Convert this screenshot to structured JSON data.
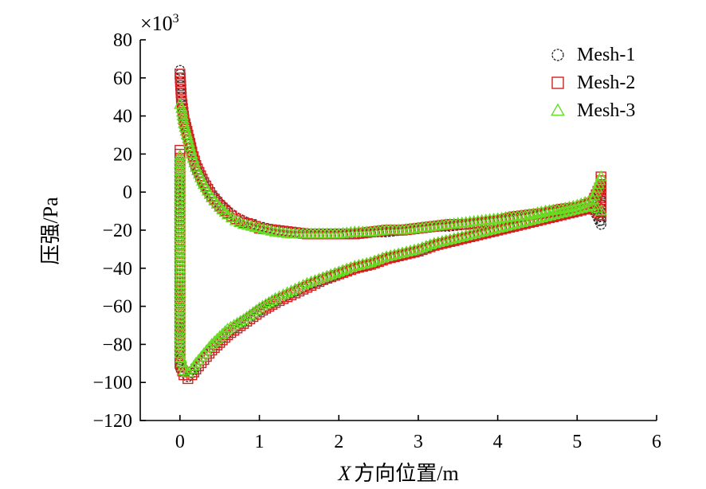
{
  "chart_data": {
    "type": "scatter",
    "title": "",
    "xlabel_italic": "X",
    "xlabel": "方向位置/m",
    "ylabel": "压强/Pa",
    "y_multiplier": "×10",
    "y_multiplier_exp": "3",
    "xlim": [
      -0.5,
      6
    ],
    "ylim": [
      -120,
      80
    ],
    "x_ticks": [
      "0",
      "1",
      "2",
      "3",
      "4",
      "5",
      "6"
    ],
    "y_ticks": [
      "80",
      "60",
      "40",
      "20",
      "0",
      "−20",
      "−40",
      "−60",
      "−80",
      "−100",
      "−120"
    ],
    "grid": false,
    "legend_position": "top-right",
    "series": [
      {
        "name": "Mesh-1",
        "marker": "circle",
        "color": "#222222",
        "upper": [
          [
            0,
            64
          ],
          [
            0.02,
            50
          ],
          [
            0.05,
            40
          ],
          [
            0.1,
            32
          ],
          [
            0.15,
            22
          ],
          [
            0.2,
            15
          ],
          [
            0.3,
            6
          ],
          [
            0.4,
            -1
          ],
          [
            0.5,
            -6
          ],
          [
            0.6,
            -10
          ],
          [
            0.7,
            -13
          ],
          [
            0.8,
            -15
          ],
          [
            0.9,
            -17
          ],
          [
            1.0,
            -18
          ],
          [
            1.2,
            -20
          ],
          [
            1.4,
            -21
          ],
          [
            1.6,
            -22
          ],
          [
            1.8,
            -22
          ],
          [
            2.0,
            -22
          ],
          [
            2.2,
            -22
          ],
          [
            2.4,
            -21
          ],
          [
            2.6,
            -21
          ],
          [
            2.8,
            -20
          ],
          [
            3.0,
            -19
          ],
          [
            3.2,
            -18
          ],
          [
            3.4,
            -18
          ],
          [
            3.6,
            -17
          ],
          [
            3.8,
            -16
          ],
          [
            4.0,
            -15
          ],
          [
            4.2,
            -14
          ],
          [
            4.4,
            -12
          ],
          [
            4.6,
            -11
          ],
          [
            4.8,
            -10
          ],
          [
            5.0,
            -8
          ],
          [
            5.2,
            -6
          ],
          [
            5.3,
            2
          ]
        ],
        "lower": [
          [
            0,
            6
          ],
          [
            0,
            -13
          ],
          [
            0,
            -45
          ],
          [
            0,
            -65
          ],
          [
            0,
            -80
          ],
          [
            0,
            -92
          ],
          [
            0.05,
            -95
          ],
          [
            0.1,
            -97
          ],
          [
            0.15,
            -95
          ],
          [
            0.2,
            -92
          ],
          [
            0.3,
            -87
          ],
          [
            0.4,
            -82
          ],
          [
            0.5,
            -78
          ],
          [
            0.6,
            -74
          ],
          [
            0.8,
            -68
          ],
          [
            1.0,
            -62
          ],
          [
            1.2,
            -57
          ],
          [
            1.4,
            -53
          ],
          [
            1.6,
            -49
          ],
          [
            1.8,
            -46
          ],
          [
            2.0,
            -43
          ],
          [
            2.2,
            -40
          ],
          [
            2.4,
            -38
          ],
          [
            2.6,
            -35
          ],
          [
            2.8,
            -33
          ],
          [
            3.0,
            -31
          ],
          [
            3.2,
            -28
          ],
          [
            3.4,
            -26
          ],
          [
            3.6,
            -24
          ],
          [
            3.8,
            -22
          ],
          [
            4.0,
            -20
          ],
          [
            4.2,
            -18
          ],
          [
            4.4,
            -16
          ],
          [
            4.6,
            -14
          ],
          [
            4.8,
            -12
          ],
          [
            5.0,
            -10
          ],
          [
            5.2,
            -8
          ],
          [
            5.3,
            -17
          ],
          [
            5.3,
            6
          ]
        ]
      },
      {
        "name": "Mesh-2",
        "marker": "square",
        "color": "#d42020",
        "upper": [
          [
            0,
            62
          ],
          [
            0.02,
            48
          ],
          [
            0.05,
            38
          ],
          [
            0.1,
            30
          ],
          [
            0.15,
            21
          ],
          [
            0.2,
            14
          ],
          [
            0.3,
            5
          ],
          [
            0.4,
            -2
          ],
          [
            0.5,
            -7
          ],
          [
            0.6,
            -11
          ],
          [
            0.7,
            -14
          ],
          [
            0.8,
            -16
          ],
          [
            0.9,
            -17
          ],
          [
            1.0,
            -19
          ],
          [
            1.2,
            -20
          ],
          [
            1.4,
            -21
          ],
          [
            1.6,
            -22
          ],
          [
            1.8,
            -22
          ],
          [
            2.0,
            -22
          ],
          [
            2.2,
            -22
          ],
          [
            2.4,
            -21
          ],
          [
            2.6,
            -20
          ],
          [
            2.8,
            -20
          ],
          [
            3.0,
            -19
          ],
          [
            3.2,
            -18
          ],
          [
            3.4,
            -17
          ],
          [
            3.6,
            -17
          ],
          [
            3.8,
            -16
          ],
          [
            4.0,
            -15
          ],
          [
            4.2,
            -13
          ],
          [
            4.4,
            -12
          ],
          [
            4.6,
            -11
          ],
          [
            4.8,
            -9
          ],
          [
            5.0,
            -8
          ],
          [
            5.2,
            -5
          ],
          [
            5.3,
            4
          ]
        ],
        "lower": [
          [
            0,
            22
          ],
          [
            0,
            -30
          ],
          [
            0,
            -58
          ],
          [
            0,
            -78
          ],
          [
            0,
            -90
          ],
          [
            0.05,
            -96
          ],
          [
            0.1,
            -98
          ],
          [
            0.15,
            -96
          ],
          [
            0.2,
            -93
          ],
          [
            0.3,
            -88
          ],
          [
            0.4,
            -83
          ],
          [
            0.5,
            -79
          ],
          [
            0.6,
            -75
          ],
          [
            0.8,
            -69
          ],
          [
            1.0,
            -63
          ],
          [
            1.2,
            -58
          ],
          [
            1.4,
            -54
          ],
          [
            1.6,
            -50
          ],
          [
            1.8,
            -46
          ],
          [
            2.0,
            -43
          ],
          [
            2.2,
            -40
          ],
          [
            2.4,
            -38
          ],
          [
            2.6,
            -35
          ],
          [
            2.8,
            -33
          ],
          [
            3.0,
            -31
          ],
          [
            3.2,
            -28
          ],
          [
            3.4,
            -26
          ],
          [
            3.6,
            -24
          ],
          [
            3.8,
            -22
          ],
          [
            4.0,
            -20
          ],
          [
            4.2,
            -18
          ],
          [
            4.4,
            -16
          ],
          [
            4.6,
            -14
          ],
          [
            4.8,
            -12
          ],
          [
            5.0,
            -10
          ],
          [
            5.2,
            -8
          ],
          [
            5.3,
            -12
          ],
          [
            5.3,
            8
          ]
        ]
      },
      {
        "name": "Mesh-3",
        "marker": "triangle",
        "color": "#66dd22",
        "upper": [
          [
            0,
            46
          ],
          [
            0.02,
            44
          ],
          [
            0.05,
            36
          ],
          [
            0.1,
            28
          ],
          [
            0.15,
            20
          ],
          [
            0.2,
            13
          ],
          [
            0.3,
            4
          ],
          [
            0.4,
            -3
          ],
          [
            0.5,
            -8
          ],
          [
            0.6,
            -12
          ],
          [
            0.7,
            -15
          ],
          [
            0.8,
            -17
          ],
          [
            0.9,
            -18
          ],
          [
            1.0,
            -19
          ],
          [
            1.2,
            -21
          ],
          [
            1.4,
            -22
          ],
          [
            1.6,
            -22
          ],
          [
            1.8,
            -22
          ],
          [
            2.0,
            -22
          ],
          [
            2.2,
            -21
          ],
          [
            2.4,
            -21
          ],
          [
            2.6,
            -20
          ],
          [
            2.8,
            -20
          ],
          [
            3.0,
            -19
          ],
          [
            3.2,
            -18
          ],
          [
            3.4,
            -17
          ],
          [
            3.6,
            -16
          ],
          [
            3.8,
            -15
          ],
          [
            4.0,
            -14
          ],
          [
            4.2,
            -13
          ],
          [
            4.4,
            -12
          ],
          [
            4.6,
            -10
          ],
          [
            4.8,
            -9
          ],
          [
            5.0,
            -7
          ],
          [
            5.2,
            -4
          ],
          [
            5.3,
            8
          ]
        ],
        "lower": [
          [
            0,
            19
          ],
          [
            0,
            -26
          ],
          [
            0,
            -57
          ],
          [
            0,
            -85
          ],
          [
            0.05,
            -94
          ],
          [
            0.1,
            -95
          ],
          [
            0.15,
            -93
          ],
          [
            0.2,
            -90
          ],
          [
            0.3,
            -85
          ],
          [
            0.4,
            -80
          ],
          [
            0.5,
            -76
          ],
          [
            0.6,
            -72
          ],
          [
            0.8,
            -67
          ],
          [
            1.0,
            -61
          ],
          [
            1.2,
            -56
          ],
          [
            1.4,
            -52
          ],
          [
            1.6,
            -48
          ],
          [
            1.8,
            -45
          ],
          [
            2.0,
            -42
          ],
          [
            2.2,
            -39
          ],
          [
            2.4,
            -37
          ],
          [
            2.6,
            -34
          ],
          [
            2.8,
            -32
          ],
          [
            3.0,
            -30
          ],
          [
            3.2,
            -27
          ],
          [
            3.4,
            -25
          ],
          [
            3.6,
            -23
          ],
          [
            3.8,
            -21
          ],
          [
            4.0,
            -19
          ],
          [
            4.2,
            -17
          ],
          [
            4.4,
            -15
          ],
          [
            4.6,
            -13
          ],
          [
            4.8,
            -11
          ],
          [
            5.0,
            -9
          ],
          [
            5.2,
            -7
          ],
          [
            5.3,
            -10
          ]
        ]
      }
    ]
  }
}
